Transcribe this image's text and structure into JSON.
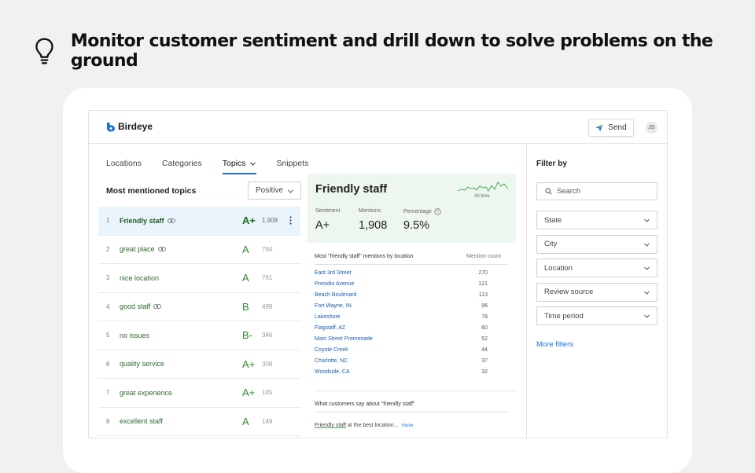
{
  "hero": {
    "title": "Monitor customer sentiment and drill down to solve problems on the ground",
    "icon": "lightbulb-icon"
  },
  "header": {
    "logo_text": "Birdeye",
    "send_label": "Send",
    "avatar_initials": "JS"
  },
  "tabs": [
    {
      "label": "Locations"
    },
    {
      "label": "Categories"
    },
    {
      "label": "Topics",
      "active": true
    },
    {
      "label": "Snippets"
    }
  ],
  "list": {
    "title": "Most mentioned topics",
    "sentiment_select": "Positive",
    "items": [
      {
        "num": "1",
        "name": "Friendly staff",
        "grade": "A+",
        "count": "1,908",
        "linked": true
      },
      {
        "num": "2",
        "name": "great place",
        "grade": "A",
        "count": "794",
        "linked": true
      },
      {
        "num": "3",
        "name": "nice location",
        "grade": "A",
        "count": "761",
        "linked": false
      },
      {
        "num": "4",
        "name": "good staff",
        "grade": "B",
        "count": "499",
        "linked": true
      },
      {
        "num": "5",
        "name": "no issues",
        "grade": "B-",
        "count": "346",
        "linked": false
      },
      {
        "num": "6",
        "name": "quality service",
        "grade": "A+",
        "count": "308",
        "linked": false
      },
      {
        "num": "7",
        "name": "great experience",
        "grade": "A+",
        "count": "185",
        "linked": false
      },
      {
        "num": "8",
        "name": "excellent staff",
        "grade": "A",
        "count": "149",
        "linked": false
      }
    ]
  },
  "detail": {
    "title": "Friendly staff",
    "sparkline_label": "All time",
    "stats": [
      {
        "label": "Sentiment",
        "value": "A+"
      },
      {
        "label": "Mentions",
        "value": "1,908"
      },
      {
        "label": "Percentage",
        "value": "9.5%"
      }
    ],
    "locations_header": "Most \"friendly staff\" mentions by location",
    "count_header": "Mention count",
    "locations": [
      {
        "name": "East 3rd Street",
        "count": "270"
      },
      {
        "name": "Presidio Avenue",
        "count": "121"
      },
      {
        "name": "Beach Boulevard",
        "count": "113"
      },
      {
        "name": "Fort Wayne, IN",
        "count": "96"
      },
      {
        "name": "Lakeshore",
        "count": "78"
      },
      {
        "name": "Flagstaff, AZ",
        "count": "60"
      },
      {
        "name": "Main Street Promenade",
        "count": "52"
      },
      {
        "name": "Coyote Creek",
        "count": "44"
      },
      {
        "name": "Charlotte, NC",
        "count": "37"
      },
      {
        "name": "Woodside, CA",
        "count": "32"
      }
    ],
    "say_header": "What customers say about \"friendly staff\"",
    "quote_highlight": "Friendly staff",
    "quote_rest": " at the best location...",
    "quote_more": "more"
  },
  "filters": {
    "title": "Filter by",
    "search_placeholder": "Search",
    "selects": [
      "State",
      "City",
      "Location",
      "Review source",
      "Time period"
    ],
    "more_filters": "More filters"
  }
}
